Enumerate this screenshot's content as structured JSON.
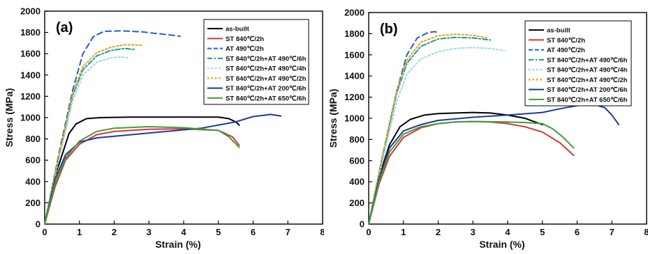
{
  "chart_data": [
    {
      "type": "line",
      "panel_label": "(a)",
      "xlabel": "Strain (%)",
      "ylabel": "Stress (MPa)",
      "xlim": [
        0,
        8
      ],
      "ylim": [
        0,
        2000
      ],
      "xticks": [
        "0",
        "1",
        "2",
        "3",
        "4",
        "5",
        "6",
        "7",
        "8"
      ],
      "yticks": [
        "0",
        "200",
        "400",
        "600",
        "800",
        "1000",
        "1200",
        "1400",
        "1600",
        "1800",
        "2000"
      ],
      "legend_position": "top-right",
      "series": [
        {
          "name": "as-built",
          "color": "#000000",
          "dash": "solid",
          "x": [
            0,
            0.3,
            0.5,
            0.7,
            0.9,
            1.2,
            1.6,
            2.5,
            3.5,
            4.5,
            5.0,
            5.3,
            5.5,
            5.6
          ],
          "y": [
            0,
            450,
            650,
            850,
            940,
            990,
            1000,
            1005,
            1005,
            1005,
            1005,
            990,
            960,
            930
          ]
        },
        {
          "name": "ST 840℃/2h",
          "color": "#e03232",
          "dash": "solid",
          "x": [
            0,
            0.3,
            0.6,
            1.0,
            1.5,
            2.0,
            3.0,
            4.0,
            5.0,
            5.4,
            5.6
          ],
          "y": [
            0,
            350,
            600,
            750,
            840,
            870,
            890,
            895,
            880,
            820,
            740
          ]
        },
        {
          "name": "AT 490℃/2h",
          "color": "#1f5fd6",
          "dash": "dash",
          "x": [
            0,
            0.4,
            0.8,
            1.1,
            1.4,
            1.7,
            2.2,
            2.8,
            3.5,
            3.9
          ],
          "y": [
            0,
            650,
            1250,
            1600,
            1760,
            1810,
            1815,
            1805,
            1780,
            1765
          ]
        },
        {
          "name": "ST 840℃/2h+AT 490℃/6h",
          "color": "#1a9a8a",
          "dash": "dashdot",
          "x": [
            0,
            0.4,
            0.8,
            1.1,
            1.5,
            1.9,
            2.3,
            2.6
          ],
          "y": [
            0,
            620,
            1200,
            1450,
            1580,
            1630,
            1650,
            1640
          ]
        },
        {
          "name": "ST 840℃/2h+AT 490℃/4h",
          "color": "#9fd8f0",
          "dash": "dot",
          "x": [
            0,
            0.4,
            0.8,
            1.1,
            1.5,
            1.9,
            2.2,
            2.4
          ],
          "y": [
            0,
            600,
            1150,
            1400,
            1520,
            1560,
            1570,
            1560
          ]
        },
        {
          "name": "ST 840℃/2h+AT 490℃/2h",
          "color": "#e8a317",
          "dash": "dot",
          "x": [
            0,
            0.4,
            0.8,
            1.1,
            1.5,
            1.9,
            2.3,
            2.8
          ],
          "y": [
            0,
            630,
            1220,
            1480,
            1610,
            1660,
            1685,
            1680
          ]
        },
        {
          "name": "ST 840℃/2h+AT 200℃/6h",
          "color": "#1a3a9a",
          "dash": "solid",
          "x": [
            0,
            0.3,
            0.6,
            1.0,
            1.5,
            2.5,
            3.5,
            4.5,
            5.5,
            6.0,
            6.5,
            6.8
          ],
          "y": [
            0,
            420,
            650,
            770,
            810,
            840,
            870,
            900,
            960,
            1010,
            1030,
            1015
          ]
        },
        {
          "name": "ST 840℃/2h+AT 650℃/6h",
          "color": "#3aa03a",
          "dash": "solid",
          "x": [
            0,
            0.3,
            0.6,
            1.0,
            1.5,
            2.0,
            3.0,
            4.0,
            5.0,
            5.3,
            5.6
          ],
          "y": [
            0,
            380,
            620,
            780,
            870,
            900,
            915,
            905,
            880,
            820,
            720
          ]
        }
      ]
    },
    {
      "type": "line",
      "panel_label": "(b)",
      "xlabel": "Strain (%)",
      "ylabel": "Stress (MPa)",
      "xlim": [
        0,
        8
      ],
      "ylim": [
        0,
        2000
      ],
      "xticks": [
        "0",
        "1",
        "2",
        "3",
        "4",
        "5",
        "6",
        "7",
        "8"
      ],
      "yticks": [
        "0",
        "200",
        "400",
        "600",
        "800",
        "1000",
        "1200",
        "1400",
        "1600",
        "1800",
        "2000"
      ],
      "legend_position": "top-right",
      "series": [
        {
          "name": "as-built",
          "color": "#000000",
          "dash": "solid",
          "x": [
            0,
            0.3,
            0.6,
            0.9,
            1.2,
            1.6,
            2.0,
            2.5,
            3.0,
            3.5,
            4.0,
            4.5,
            5.0
          ],
          "y": [
            0,
            450,
            750,
            920,
            990,
            1030,
            1045,
            1050,
            1055,
            1050,
            1030,
            1000,
            940
          ]
        },
        {
          "name": "ST 840℃/2h",
          "color": "#e03232",
          "dash": "solid",
          "x": [
            0,
            0.3,
            0.6,
            1.0,
            1.5,
            2.0,
            2.5,
            3.0,
            3.5,
            4.0,
            4.5,
            5.0,
            5.5,
            5.9
          ],
          "y": [
            0,
            380,
            640,
            820,
            910,
            950,
            965,
            970,
            965,
            950,
            920,
            870,
            770,
            650
          ]
        },
        {
          "name": "AT 490℃/2h",
          "color": "#1f5fd6",
          "dash": "dash",
          "x": [
            0,
            0.4,
            0.8,
            1.1,
            1.4,
            1.7,
            1.9,
            2.0
          ],
          "y": [
            0,
            650,
            1250,
            1600,
            1760,
            1810,
            1820,
            1810
          ]
        },
        {
          "name": "ST 840℃/2h+AT 490℃/6h",
          "color": "#1a9a8a",
          "dash": "dashdot",
          "x": [
            0,
            0.4,
            0.8,
            1.1,
            1.5,
            2.0,
            2.5,
            3.0,
            3.5
          ],
          "y": [
            0,
            640,
            1230,
            1520,
            1680,
            1750,
            1765,
            1760,
            1740
          ]
        },
        {
          "name": "ST 840℃/2h+AT 490℃/4h",
          "color": "#9fd8f0",
          "dash": "dot",
          "x": [
            0,
            0.4,
            0.8,
            1.1,
            1.5,
            2.0,
            2.5,
            3.0,
            3.5,
            3.9
          ],
          "y": [
            0,
            600,
            1150,
            1420,
            1560,
            1630,
            1660,
            1670,
            1660,
            1640
          ]
        },
        {
          "name": "ST 840℃/2h+AT 490℃/2h",
          "color": "#e8a317",
          "dash": "dot",
          "x": [
            0,
            0.4,
            0.8,
            1.1,
            1.5,
            2.0,
            2.5,
            3.0,
            3.4
          ],
          "y": [
            0,
            650,
            1250,
            1550,
            1720,
            1780,
            1795,
            1785,
            1760
          ]
        },
        {
          "name": "ST 840℃/2h+AT 200℃/6h",
          "color": "#1a3a9a",
          "dash": "solid",
          "x": [
            0,
            0.3,
            0.6,
            1.0,
            1.5,
            2.0,
            3.0,
            4.0,
            5.0,
            5.5,
            6.0,
            6.5,
            6.8,
            7.0,
            7.2
          ],
          "y": [
            0,
            430,
            720,
            880,
            940,
            980,
            1010,
            1030,
            1055,
            1090,
            1120,
            1130,
            1100,
            1030,
            940
          ]
        },
        {
          "name": "ST 840℃/2h+AT 650℃/6h",
          "color": "#3aa03a",
          "dash": "solid",
          "x": [
            0,
            0.3,
            0.6,
            1.0,
            1.5,
            2.0,
            2.5,
            3.0,
            3.5,
            4.0,
            4.5,
            5.0,
            5.3,
            5.6,
            5.9
          ],
          "y": [
            0,
            400,
            680,
            850,
            920,
            950,
            965,
            970,
            968,
            965,
            960,
            950,
            900,
            820,
            720
          ]
        }
      ]
    }
  ]
}
